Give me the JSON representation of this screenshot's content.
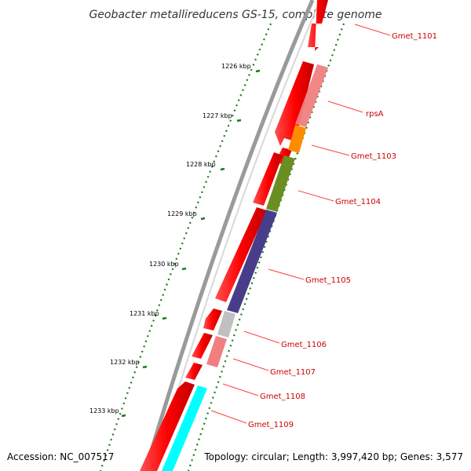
{
  "title": "Geobacter metallireducens GS-15, complete genome",
  "footer": {
    "accession": "Accession: NC_007517",
    "topology": "Topology: circular; Length: 3,997,420 bp; Genes: 3,577"
  },
  "ticks": [
    {
      "label": "1226 kbp"
    },
    {
      "label": "1227 kbp"
    },
    {
      "label": "1228 kbp"
    },
    {
      "label": "1229 kbp"
    },
    {
      "label": "1230 kbp"
    },
    {
      "label": "1231 kbp"
    },
    {
      "label": "1232 kbp"
    },
    {
      "label": "1233 kbp"
    }
  ],
  "genes": [
    {
      "name": "Gmet_1101",
      "strand": "-"
    },
    {
      "name": "rpsA",
      "strand": "-"
    },
    {
      "name": "Gmet_1103",
      "strand": "-"
    },
    {
      "name": "Gmet_1104",
      "strand": "-"
    },
    {
      "name": "Gmet_1105",
      "strand": "-"
    },
    {
      "name": "Gmet_1106",
      "strand": "-"
    },
    {
      "name": "Gmet_1107",
      "strand": "-"
    },
    {
      "name": "Gmet_1108",
      "strand": "-"
    },
    {
      "name": "Gmet_1109",
      "strand": "-"
    }
  ],
  "colors": {
    "cds": "#ff0000",
    "backbone": "#808080",
    "tick": "#1a7a1a",
    "label": "#cc0000",
    "categories": [
      "#f08080",
      "#ff8c00",
      "#6b8e23",
      "#483d8b",
      "#c0c0c0",
      "#f08080",
      "#00ffff"
    ]
  }
}
